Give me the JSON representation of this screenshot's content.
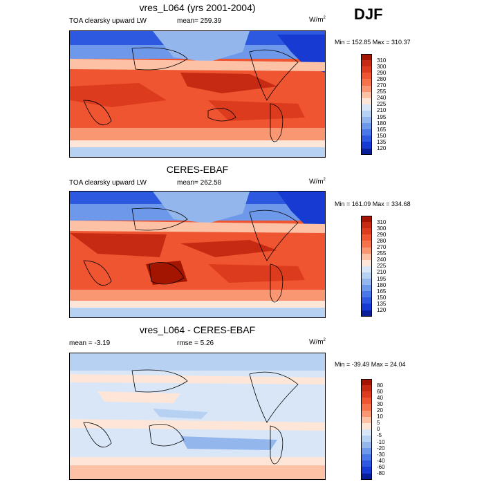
{
  "season": "DJF",
  "panels": [
    {
      "title": "vres_L064 (yrs 2001-2004)",
      "variable": "TOA clearsky upward LW",
      "stat": "mean= 259.39",
      "units_base": "W/m",
      "units_exp": "2",
      "minmax": "Min = 152.85 Max = 310.37",
      "colorbar": {
        "labels": [
          "310",
          "300",
          "290",
          "280",
          "270",
          "255",
          "240",
          "225",
          "210",
          "195",
          "180",
          "165",
          "150",
          "135",
          "120"
        ],
        "colors": [
          "#a31500",
          "#c72a12",
          "#dd3b1d",
          "#ef5530",
          "#f5724a",
          "#fa9773",
          "#fdc1a5",
          "#fde6d8",
          "#d8e6f7",
          "#b7d1f2",
          "#93b6ed",
          "#6e98ea",
          "#4a78e8",
          "#2d58e0",
          "#173bd2",
          "#0a1e9c"
        ]
      }
    },
    {
      "title": "CERES-EBAF",
      "variable": "TOA clearsky upward LW",
      "stat": "mean= 262.58",
      "units_base": "W/m",
      "units_exp": "2",
      "minmax": "Min = 161.09 Max = 334.68",
      "colorbar": {
        "labels": [
          "310",
          "300",
          "290",
          "280",
          "270",
          "255",
          "240",
          "225",
          "210",
          "195",
          "180",
          "165",
          "150",
          "135",
          "120"
        ],
        "colors": [
          "#a31500",
          "#c72a12",
          "#dd3b1d",
          "#ef5530",
          "#f5724a",
          "#fa9773",
          "#fdc1a5",
          "#fde6d8",
          "#d8e6f7",
          "#b7d1f2",
          "#93b6ed",
          "#6e98ea",
          "#4a78e8",
          "#2d58e0",
          "#173bd2",
          "#0a1e9c"
        ]
      }
    },
    {
      "title": "vres_L064 - CERES-EBAF",
      "variable": "mean =  -3.19",
      "stat": "rmse =   5.26",
      "units_base": "W/m",
      "units_exp": "2",
      "minmax": "Min = -39.49 Max = 24.04",
      "colorbar": {
        "labels": [
          "80",
          "60",
          "40",
          "30",
          "20",
          "10",
          "5",
          "0",
          "-5",
          "-10",
          "-20",
          "-30",
          "-40",
          "-60",
          "-80"
        ],
        "colors": [
          "#a31500",
          "#c72a12",
          "#dd3b1d",
          "#ef5530",
          "#f5724a",
          "#fa9773",
          "#fdc1a5",
          "#fde6d8",
          "#d8e6f7",
          "#b7d1f2",
          "#93b6ed",
          "#6e98ea",
          "#4a78e8",
          "#2d58e0",
          "#173bd2",
          "#0a1e9c"
        ]
      }
    }
  ]
}
